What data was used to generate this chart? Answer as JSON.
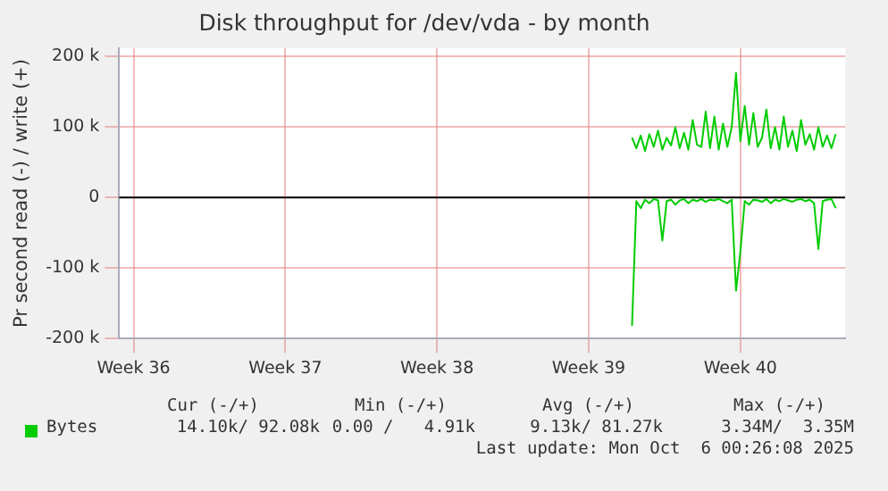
{
  "chart_data": {
    "type": "line",
    "title": "Disk throughput for /dev/vda - by month",
    "ylabel": "Pr second read (-) / write (+)",
    "xlim": [
      "2025-08-31T08:00",
      "2025-10-03T20:00"
    ],
    "xticks": [
      {
        "value": "2025-09-01",
        "label": "Week 36"
      },
      {
        "value": "2025-09-08",
        "label": "Week 37"
      },
      {
        "value": "2025-09-15",
        "label": "Week 38"
      },
      {
        "value": "2025-09-22",
        "label": "Week 39"
      },
      {
        "value": "2025-09-29",
        "label": "Week 40"
      }
    ],
    "ylim": [
      -200000,
      212000
    ],
    "yticks": [
      {
        "value": -200000,
        "label": "-200 k"
      },
      {
        "value": -100000,
        "label": "-100 k"
      },
      {
        "value": 0,
        "label": "0"
      },
      {
        "value": 100000,
        "label": "100 k"
      },
      {
        "value": 200000,
        "label": "200 k"
      }
    ],
    "grid": true,
    "legend": "bottom",
    "marker": "none",
    "line_style": "solid",
    "ref_lines": [
      {
        "axis": "y",
        "value": 0,
        "color": "#000000"
      }
    ],
    "x": [
      "2025-09-24T00:00",
      "2025-09-24T04:48",
      "2025-09-24T09:36",
      "2025-09-24T14:24",
      "2025-09-24T19:12",
      "2025-09-25T00:00",
      "2025-09-25T04:48",
      "2025-09-25T09:36",
      "2025-09-25T14:24",
      "2025-09-25T19:12",
      "2025-09-26T00:00",
      "2025-09-26T04:48",
      "2025-09-26T09:36",
      "2025-09-26T14:24",
      "2025-09-26T19:12",
      "2025-09-27T00:00",
      "2025-09-27T04:48",
      "2025-09-27T09:36",
      "2025-09-27T14:24",
      "2025-09-27T19:12",
      "2025-09-28T00:00",
      "2025-09-28T04:48",
      "2025-09-28T09:36",
      "2025-09-28T14:24",
      "2025-09-28T19:12",
      "2025-09-29T00:00",
      "2025-09-29T04:48",
      "2025-09-29T09:36",
      "2025-09-29T14:24",
      "2025-09-29T19:12",
      "2025-09-30T00:00",
      "2025-09-30T04:48",
      "2025-09-30T09:36",
      "2025-09-30T14:24",
      "2025-09-30T19:12",
      "2025-10-01T00:00",
      "2025-10-01T04:48",
      "2025-10-01T09:36",
      "2025-10-01T14:24",
      "2025-10-01T19:12",
      "2025-10-02T00:00",
      "2025-10-02T04:48",
      "2025-10-02T09:36",
      "2025-10-02T14:24",
      "2025-10-02T19:12",
      "2025-10-03T00:00",
      "2025-10-03T04:48",
      "2025-10-03T09:36"
    ],
    "series": [
      {
        "name": "Bytes",
        "color": "#00cc00",
        "values": [
          85000,
          70000,
          88000,
          66000,
          90000,
          72000,
          95000,
          68000,
          85000,
          74000,
          100000,
          70000,
          92000,
          68000,
          110000,
          75000,
          72000,
          122000,
          70000,
          115000,
          68000,
          105000,
          72000,
          100000,
          177000,
          80000,
          130000,
          75000,
          120000,
          72000,
          85000,
          125000,
          70000,
          100000,
          68000,
          115000,
          72000,
          95000,
          66000,
          110000,
          75000,
          90000,
          68000,
          100000,
          72000,
          88000,
          70000,
          90000
        ]
      },
      {
        "color": "#00cc00",
        "values": [
          -182000,
          -5000,
          -15000,
          -3000,
          -8000,
          -2000,
          -4000,
          -61000,
          -5000,
          -3000,
          -10000,
          -4000,
          -2000,
          -8000,
          -3000,
          -5000,
          -2000,
          -6000,
          -3000,
          -4000,
          -2000,
          -5000,
          -8000,
          -3000,
          -132000,
          -77000,
          -5000,
          -10000,
          -3000,
          -4000,
          -6000,
          -2000,
          -8000,
          -3000,
          -5000,
          -2000,
          -4000,
          -6000,
          -3000,
          -2000,
          -5000,
          -3000,
          -8000,
          -73000,
          -5000,
          -3000,
          -2000,
          -15000
        ]
      }
    ],
    "annotations": [
      "Cur (-/+)",
      "Min (-/+)",
      "Avg (-/+)",
      "Max (-/+)",
      "14.10k/ 92.08k",
      "0.00 /   4.91k",
      "9.13k/ 81.27k",
      "3.34M/  3.35M",
      "Last update: Mon Oct  6 00:26:08 2025"
    ]
  }
}
